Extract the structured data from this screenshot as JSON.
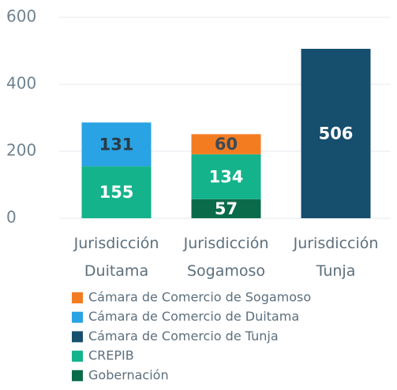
{
  "chart_data": {
    "type": "stacked_bar",
    "categories": [
      "Jurisdicción Duitama",
      "Jurisdicción Sogamoso",
      "Jurisdicción Tunja"
    ],
    "series": [
      {
        "name": "Cámara de Comercio de Sogamoso",
        "color": "#f47c20",
        "label_color": "#3d4a55",
        "values": [
          null,
          60,
          null
        ]
      },
      {
        "name": "Cámara de Comercio de Duitama",
        "color": "#29a3e3",
        "label_color": "#2c3a46",
        "values": [
          131,
          null,
          null
        ]
      },
      {
        "name": "Cámara de Comercio de Tunja",
        "color": "#164e6e",
        "label_color": "#ffffff",
        "values": [
          null,
          null,
          506
        ]
      },
      {
        "name": "CREPIB",
        "color": "#14b38c",
        "label_color": "#ffffff",
        "values": [
          155,
          134,
          null
        ]
      },
      {
        "name": "Gobernación",
        "color": "#0a6b4a",
        "label_color": "#ffffff",
        "values": [
          null,
          57,
          null
        ]
      }
    ],
    "ylim": [
      0,
      600
    ],
    "yticks": [
      0,
      200,
      400,
      600
    ],
    "grid": true
  }
}
